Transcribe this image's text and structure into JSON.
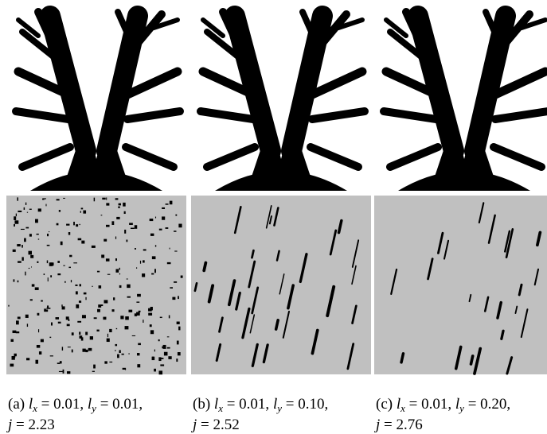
{
  "panels": [
    {
      "caption": [
        [
          {
            "t": "(a) "
          },
          {
            "i": "l"
          },
          {
            "s": "x"
          },
          {
            "t": " = 0.01, "
          },
          {
            "i": "l"
          },
          {
            "s": "y"
          },
          {
            "t": " = 0.01,"
          }
        ],
        [
          {
            "i": "j"
          },
          {
            "t": " = 2.23"
          }
        ]
      ]
    },
    {
      "caption": [
        [
          {
            "t": "(b) "
          },
          {
            "i": "l"
          },
          {
            "s": "x"
          },
          {
            "t": " = 0.01, "
          },
          {
            "i": "l"
          },
          {
            "s": "y"
          },
          {
            "t": " = 0.10,"
          }
        ],
        [
          {
            "i": "j"
          },
          {
            "t": " = 2.52"
          }
        ]
      ]
    },
    {
      "caption": [
        [
          {
            "t": "(c) "
          },
          {
            "i": "l"
          },
          {
            "s": "x"
          },
          {
            "t": " = 0.01, "
          },
          {
            "i": "l"
          },
          {
            "s": "y"
          },
          {
            "t": " = 0.20,"
          }
        ],
        [
          {
            "i": "j"
          },
          {
            "t": " = 2.76"
          }
        ]
      ]
    }
  ]
}
